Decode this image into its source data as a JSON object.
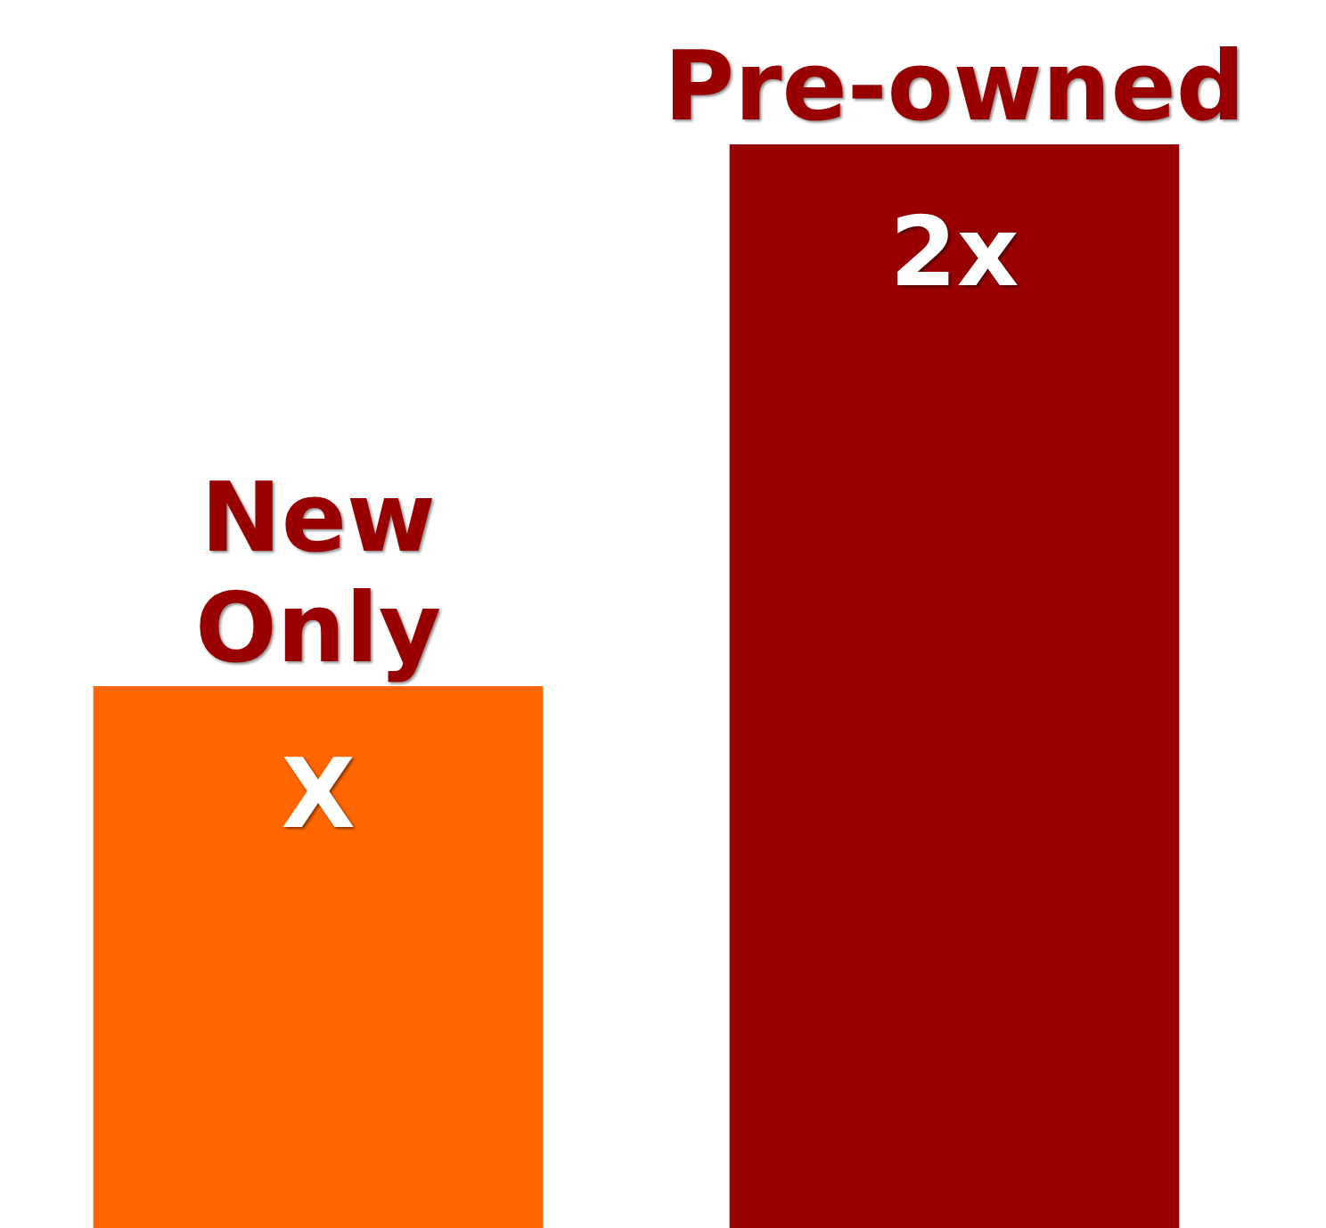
{
  "chart_data": {
    "type": "bar",
    "categories": [
      "New Only",
      "Pre-owned"
    ],
    "values": [
      1,
      2
    ],
    "colors": [
      "#ff6600",
      "#990000"
    ],
    "value_labels": [
      "X",
      "2x"
    ]
  }
}
